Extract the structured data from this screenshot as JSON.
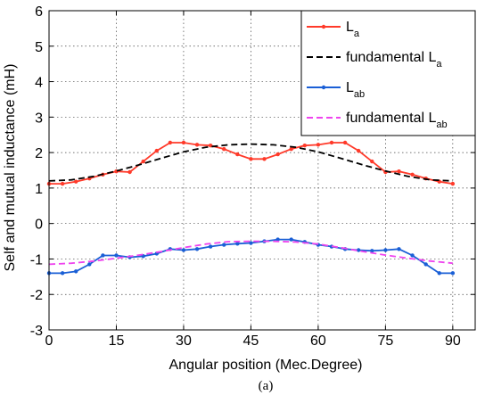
{
  "chart_data": {
    "type": "line",
    "xlabel": "Angular position (Mec.Degree)",
    "ylabel": "Self and mutual inductance (mH)",
    "caption": "(a)",
    "xlim": [
      0,
      95
    ],
    "ylim": [
      -3,
      6
    ],
    "xticks": [
      0,
      15,
      30,
      45,
      60,
      75,
      90
    ],
    "yticks": [
      -3,
      -2,
      -1,
      0,
      1,
      2,
      3,
      4,
      5,
      6
    ],
    "grid": true,
    "legend_position": "top-right",
    "series": [
      {
        "name": "L_a",
        "label_main": "L",
        "label_sub": "a",
        "color": "#ff3a2a",
        "style": "solid",
        "marker": "dot",
        "x": [
          0,
          3,
          6,
          9,
          12,
          15,
          18,
          21,
          24,
          27,
          30,
          33,
          36,
          39,
          42,
          45,
          48,
          51,
          54,
          57,
          60,
          63,
          66,
          69,
          72,
          75,
          78,
          81,
          84,
          87,
          90
        ],
        "y": [
          1.12,
          1.12,
          1.18,
          1.27,
          1.38,
          1.47,
          1.45,
          1.75,
          2.05,
          2.28,
          2.28,
          2.22,
          2.2,
          2.1,
          1.95,
          1.82,
          1.82,
          1.95,
          2.1,
          2.2,
          2.22,
          2.28,
          2.28,
          2.05,
          1.75,
          1.45,
          1.47,
          1.38,
          1.27,
          1.18,
          1.12
        ]
      },
      {
        "name": "fundamental L_a",
        "label_main": "fundamental L",
        "label_sub": "a",
        "color": "#000000",
        "style": "dashed",
        "marker": "none",
        "x": [
          0,
          5,
          10,
          15,
          20,
          25,
          30,
          35,
          40,
          45,
          50,
          55,
          60,
          65,
          70,
          75,
          80,
          85,
          90
        ],
        "y": [
          1.2,
          1.23,
          1.33,
          1.48,
          1.65,
          1.84,
          2.02,
          2.15,
          2.22,
          2.24,
          2.22,
          2.15,
          2.02,
          1.84,
          1.65,
          1.48,
          1.33,
          1.23,
          1.2
        ]
      },
      {
        "name": "L_ab",
        "label_main": "L",
        "label_sub": "ab",
        "color": "#1a5fd6",
        "style": "solid",
        "marker": "dot",
        "x": [
          0,
          3,
          6,
          9,
          12,
          15,
          18,
          21,
          24,
          27,
          30,
          33,
          36,
          39,
          42,
          45,
          48,
          51,
          54,
          57,
          60,
          63,
          66,
          69,
          72,
          75,
          78,
          81,
          84,
          87,
          90
        ],
        "y": [
          -1.4,
          -1.4,
          -1.35,
          -1.15,
          -0.9,
          -0.9,
          -0.95,
          -0.92,
          -0.85,
          -0.72,
          -0.75,
          -0.72,
          -0.65,
          -0.6,
          -0.57,
          -0.55,
          -0.5,
          -0.45,
          -0.45,
          -0.52,
          -0.6,
          -0.65,
          -0.72,
          -0.75,
          -0.77,
          -0.75,
          -0.72,
          -0.9,
          -1.15,
          -1.4,
          -1.4
        ]
      },
      {
        "name": "fundamental L_ab",
        "label_main": "fundamental L",
        "label_sub": "ab",
        "color": "#ee44ee",
        "style": "dashed",
        "marker": "none",
        "x": [
          0,
          5,
          10,
          15,
          20,
          25,
          30,
          35,
          40,
          45,
          50,
          55,
          60,
          65,
          70,
          75,
          80,
          85,
          90
        ],
        "y": [
          -1.15,
          -1.12,
          -1.06,
          -0.98,
          -0.89,
          -0.79,
          -0.68,
          -0.58,
          -0.51,
          -0.5,
          -0.5,
          -0.52,
          -0.58,
          -0.68,
          -0.79,
          -0.89,
          -0.98,
          -1.06,
          -1.12
        ]
      }
    ]
  }
}
